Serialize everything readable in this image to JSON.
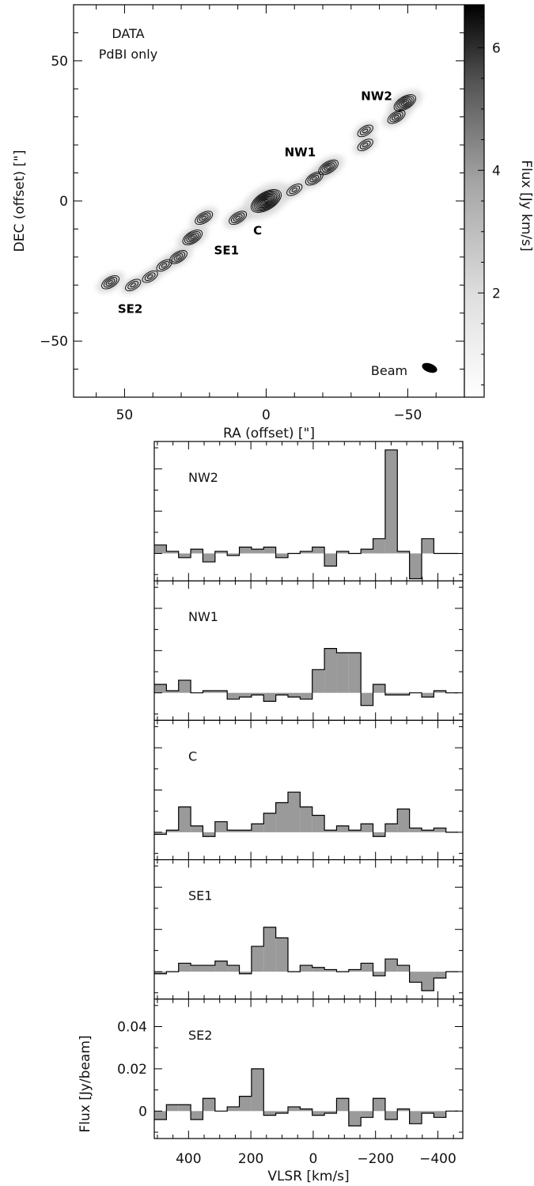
{
  "map": {
    "title_lines": [
      "DATA",
      "PdBI only"
    ],
    "xlabel": "RA (offset) [\"]",
    "ylabel": "DEC (offset) [\"]",
    "xlim": [
      68,
      -70
    ],
    "ylim": [
      -70,
      70
    ],
    "xticks": [
      50,
      0,
      -50
    ],
    "yticks": [
      50,
      0,
      -50
    ],
    "xtick_labels": [
      "50",
      "0",
      "−50"
    ],
    "ytick_labels": [
      "50",
      "0",
      "−50"
    ],
    "regions": [
      {
        "name": "NW2",
        "x": -39,
        "y": 36
      },
      {
        "name": "NW1",
        "x": -12,
        "y": 16
      },
      {
        "name": "C",
        "x": 3,
        "y": -12
      },
      {
        "name": "SE1",
        "x": 14,
        "y": -19
      },
      {
        "name": "SE2",
        "x": 48,
        "y": -40
      }
    ],
    "beam_label": "Beam",
    "colorbar": {
      "label": "Flux [Jy km/s]",
      "range": [
        0.3,
        6.7
      ],
      "ticks": [
        2,
        4,
        6
      ],
      "tick_labels": [
        "2",
        "4",
        "6"
      ]
    },
    "peaks": [
      {
        "x": -49,
        "y": 35,
        "f": 6
      },
      {
        "x": -46,
        "y": 30,
        "f": 4
      },
      {
        "x": -35,
        "y": 25,
        "f": 3
      },
      {
        "x": -35,
        "y": 20,
        "f": 3
      },
      {
        "x": -22,
        "y": 12,
        "f": 5
      },
      {
        "x": -17,
        "y": 8,
        "f": 4
      },
      {
        "x": -10,
        "y": 4,
        "f": 3
      },
      {
        "x": 0,
        "y": 0,
        "f": 10
      },
      {
        "x": 10,
        "y": -6,
        "f": 4
      },
      {
        "x": 22,
        "y": -6,
        "f": 4
      },
      {
        "x": 26,
        "y": -13,
        "f": 5
      },
      {
        "x": 31,
        "y": -20,
        "f": 4
      },
      {
        "x": 36,
        "y": -23,
        "f": 3
      },
      {
        "x": 41,
        "y": -27,
        "f": 3
      },
      {
        "x": 47,
        "y": -30,
        "f": 3
      },
      {
        "x": 55,
        "y": -29,
        "f": 4
      }
    ]
  },
  "chart_data": {
    "type": "step",
    "xlabel": "VLSR [km/s]",
    "ylabel": "Flux [Jy/beam]",
    "xlim": [
      510,
      -480
    ],
    "ylim": [
      -0.013,
      0.053
    ],
    "xticks": [
      400,
      200,
      0,
      -200,
      -400
    ],
    "xtick_labels": [
      "400",
      "200",
      "0",
      "−200",
      "−400"
    ],
    "yticks": [
      0,
      0.02,
      0.04
    ],
    "ytick_labels": [
      "0",
      "0.02",
      "0.04"
    ],
    "bin_edges": [
      510,
      471,
      432,
      393,
      354,
      315,
      276,
      237,
      198,
      159,
      120,
      81,
      42,
      3,
      -36,
      -75,
      -114,
      -153,
      -192,
      -231,
      -270,
      -309,
      -348,
      -387,
      -426,
      -465
    ],
    "series": [
      {
        "name": "NW2",
        "values": [
          0.004,
          0.001,
          -0.002,
          0.002,
          -0.004,
          0.001,
          -0.001,
          0.003,
          0.002,
          0.003,
          -0.002,
          0.0,
          0.001,
          0.003,
          -0.006,
          0.001,
          0.0,
          0.002,
          0.007,
          0.049,
          0.001,
          -0.012,
          0.007,
          0.0,
          0.0
        ]
      },
      {
        "name": "NW1",
        "values": [
          0.004,
          0.001,
          0.006,
          0.0,
          0.001,
          0.001,
          -0.003,
          -0.002,
          -0.001,
          -0.004,
          -0.001,
          -0.002,
          -0.003,
          0.011,
          0.021,
          0.019,
          0.019,
          -0.006,
          0.004,
          -0.001,
          -0.001,
          0.0,
          -0.002,
          0.001,
          0.0
        ]
      },
      {
        "name": "C",
        "values": [
          -0.001,
          0.001,
          0.012,
          0.003,
          -0.002,
          0.005,
          0.001,
          0.001,
          0.004,
          0.009,
          0.014,
          0.019,
          0.012,
          0.008,
          0.001,
          0.003,
          0.001,
          0.004,
          -0.002,
          0.004,
          0.011,
          0.002,
          0.001,
          0.002,
          0.0
        ]
      },
      {
        "name": "SE1",
        "values": [
          -0.001,
          0.0,
          0.004,
          0.003,
          0.003,
          0.005,
          0.003,
          -0.001,
          0.012,
          0.021,
          0.016,
          0.0,
          0.003,
          0.002,
          0.001,
          0.0,
          0.001,
          0.004,
          -0.002,
          0.006,
          0.003,
          -0.005,
          -0.009,
          -0.003,
          0.0
        ]
      },
      {
        "name": "SE2",
        "values": [
          -0.004,
          0.003,
          0.003,
          -0.004,
          0.006,
          0.0,
          0.002,
          0.007,
          0.02,
          -0.002,
          -0.001,
          0.002,
          0.001,
          -0.002,
          -0.001,
          0.006,
          -0.007,
          -0.003,
          0.006,
          -0.004,
          0.001,
          -0.006,
          -0.001,
          -0.003,
          0.0
        ]
      }
    ]
  }
}
